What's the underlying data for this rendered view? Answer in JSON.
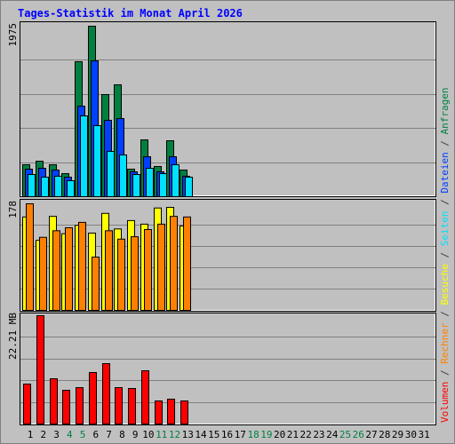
{
  "title": "Tages-Statistik im Monat April 2026",
  "legend_separator": " / ",
  "chart_data": [
    {
      "type": "bar",
      "ylim": [
        0,
        1975
      ],
      "yticks": [
        1975
      ],
      "grid": true,
      "series": [
        {
          "name": "Anfragen",
          "color": "#008040",
          "values": [
            370,
            411,
            370,
            267,
            1564,
            1975,
            1183,
            1296,
            319,
            658,
            350,
            648,
            309,
            null,
            null,
            null,
            null,
            null,
            null,
            null,
            null,
            null,
            null,
            null,
            null,
            null,
            null,
            null,
            null,
            null,
            null
          ]
        },
        {
          "name": "Dateien",
          "color": "#0040FF",
          "values": [
            319,
            329,
            309,
            226,
            1049,
            1574,
            885,
            905,
            288,
            463,
            288,
            463,
            237,
            null,
            null,
            null,
            null,
            null,
            null,
            null,
            null,
            null,
            null,
            null,
            null,
            null,
            null,
            null,
            null,
            null,
            null
          ]
        },
        {
          "name": "Seiten",
          "color": "#00E0FF",
          "values": [
            257,
            226,
            237,
            185,
            936,
            823,
            525,
            484,
            257,
            329,
            267,
            370,
            226,
            null,
            null,
            null,
            null,
            null,
            null,
            null,
            null,
            null,
            null,
            null,
            null,
            null,
            null,
            null,
            null,
            null,
            null
          ]
        }
      ]
    },
    {
      "type": "bar",
      "ylim": [
        0,
        178
      ],
      "yticks": [
        178
      ],
      "grid": true,
      "series": [
        {
          "name": "Besuche",
          "color": "#FFFF00",
          "values": [
            156,
            117,
            157,
            128,
            142,
            129,
            162,
            136,
            150,
            144,
            171,
            172,
            141,
            null,
            null,
            null,
            null,
            null,
            null,
            null,
            null,
            null,
            null,
            null,
            null,
            null,
            null,
            null,
            null,
            null,
            null
          ]
        },
        {
          "name": "Rechner",
          "color": "#FF8000",
          "values": [
            178,
            122,
            133,
            138,
            147,
            89,
            133,
            119,
            123,
            135,
            144,
            157,
            156,
            null,
            null,
            null,
            null,
            null,
            null,
            null,
            null,
            null,
            null,
            null,
            null,
            null,
            null,
            null,
            null,
            null,
            null
          ]
        }
      ]
    },
    {
      "type": "bar",
      "ylim": [
        0,
        22.21
      ],
      "yticks": [
        {
          "value": 22.21,
          "label": "22.21 MB"
        }
      ],
      "grid": true,
      "categories": [
        "1",
        "2",
        "3",
        "4",
        "5",
        "6",
        "7",
        "8",
        "9",
        "10",
        "11",
        "12",
        "13",
        "14",
        "15",
        "16",
        "17",
        "18",
        "19",
        "20",
        "21",
        "22",
        "23",
        "24",
        "25",
        "26",
        "27",
        "28",
        "29",
        "30",
        "31"
      ],
      "category_colors": [
        "#000000",
        "#000000",
        "#000000",
        "#008040",
        "#008040",
        "#000000",
        "#000000",
        "#000000",
        "#000000",
        "#000000",
        "#008040",
        "#008040",
        "#000000",
        "#000000",
        "#000000",
        "#000000",
        "#000000",
        "#008040",
        "#008040",
        "#000000",
        "#000000",
        "#000000",
        "#000000",
        "#000000",
        "#008040",
        "#008040",
        "#000000",
        "#000000",
        "#000000",
        "#000000",
        "#000000"
      ],
      "series": [
        {
          "name": "Volumen",
          "color": "#FF0000",
          "values": [
            8.19,
            22.21,
            9.28,
            6.92,
            7.46,
            10.56,
            12.38,
            7.46,
            7.28,
            10.92,
            4.73,
            5.1,
            4.73,
            null,
            null,
            null,
            null,
            null,
            null,
            null,
            null,
            null,
            null,
            null,
            null,
            null,
            null,
            null,
            null,
            null,
            null
          ]
        }
      ]
    }
  ]
}
